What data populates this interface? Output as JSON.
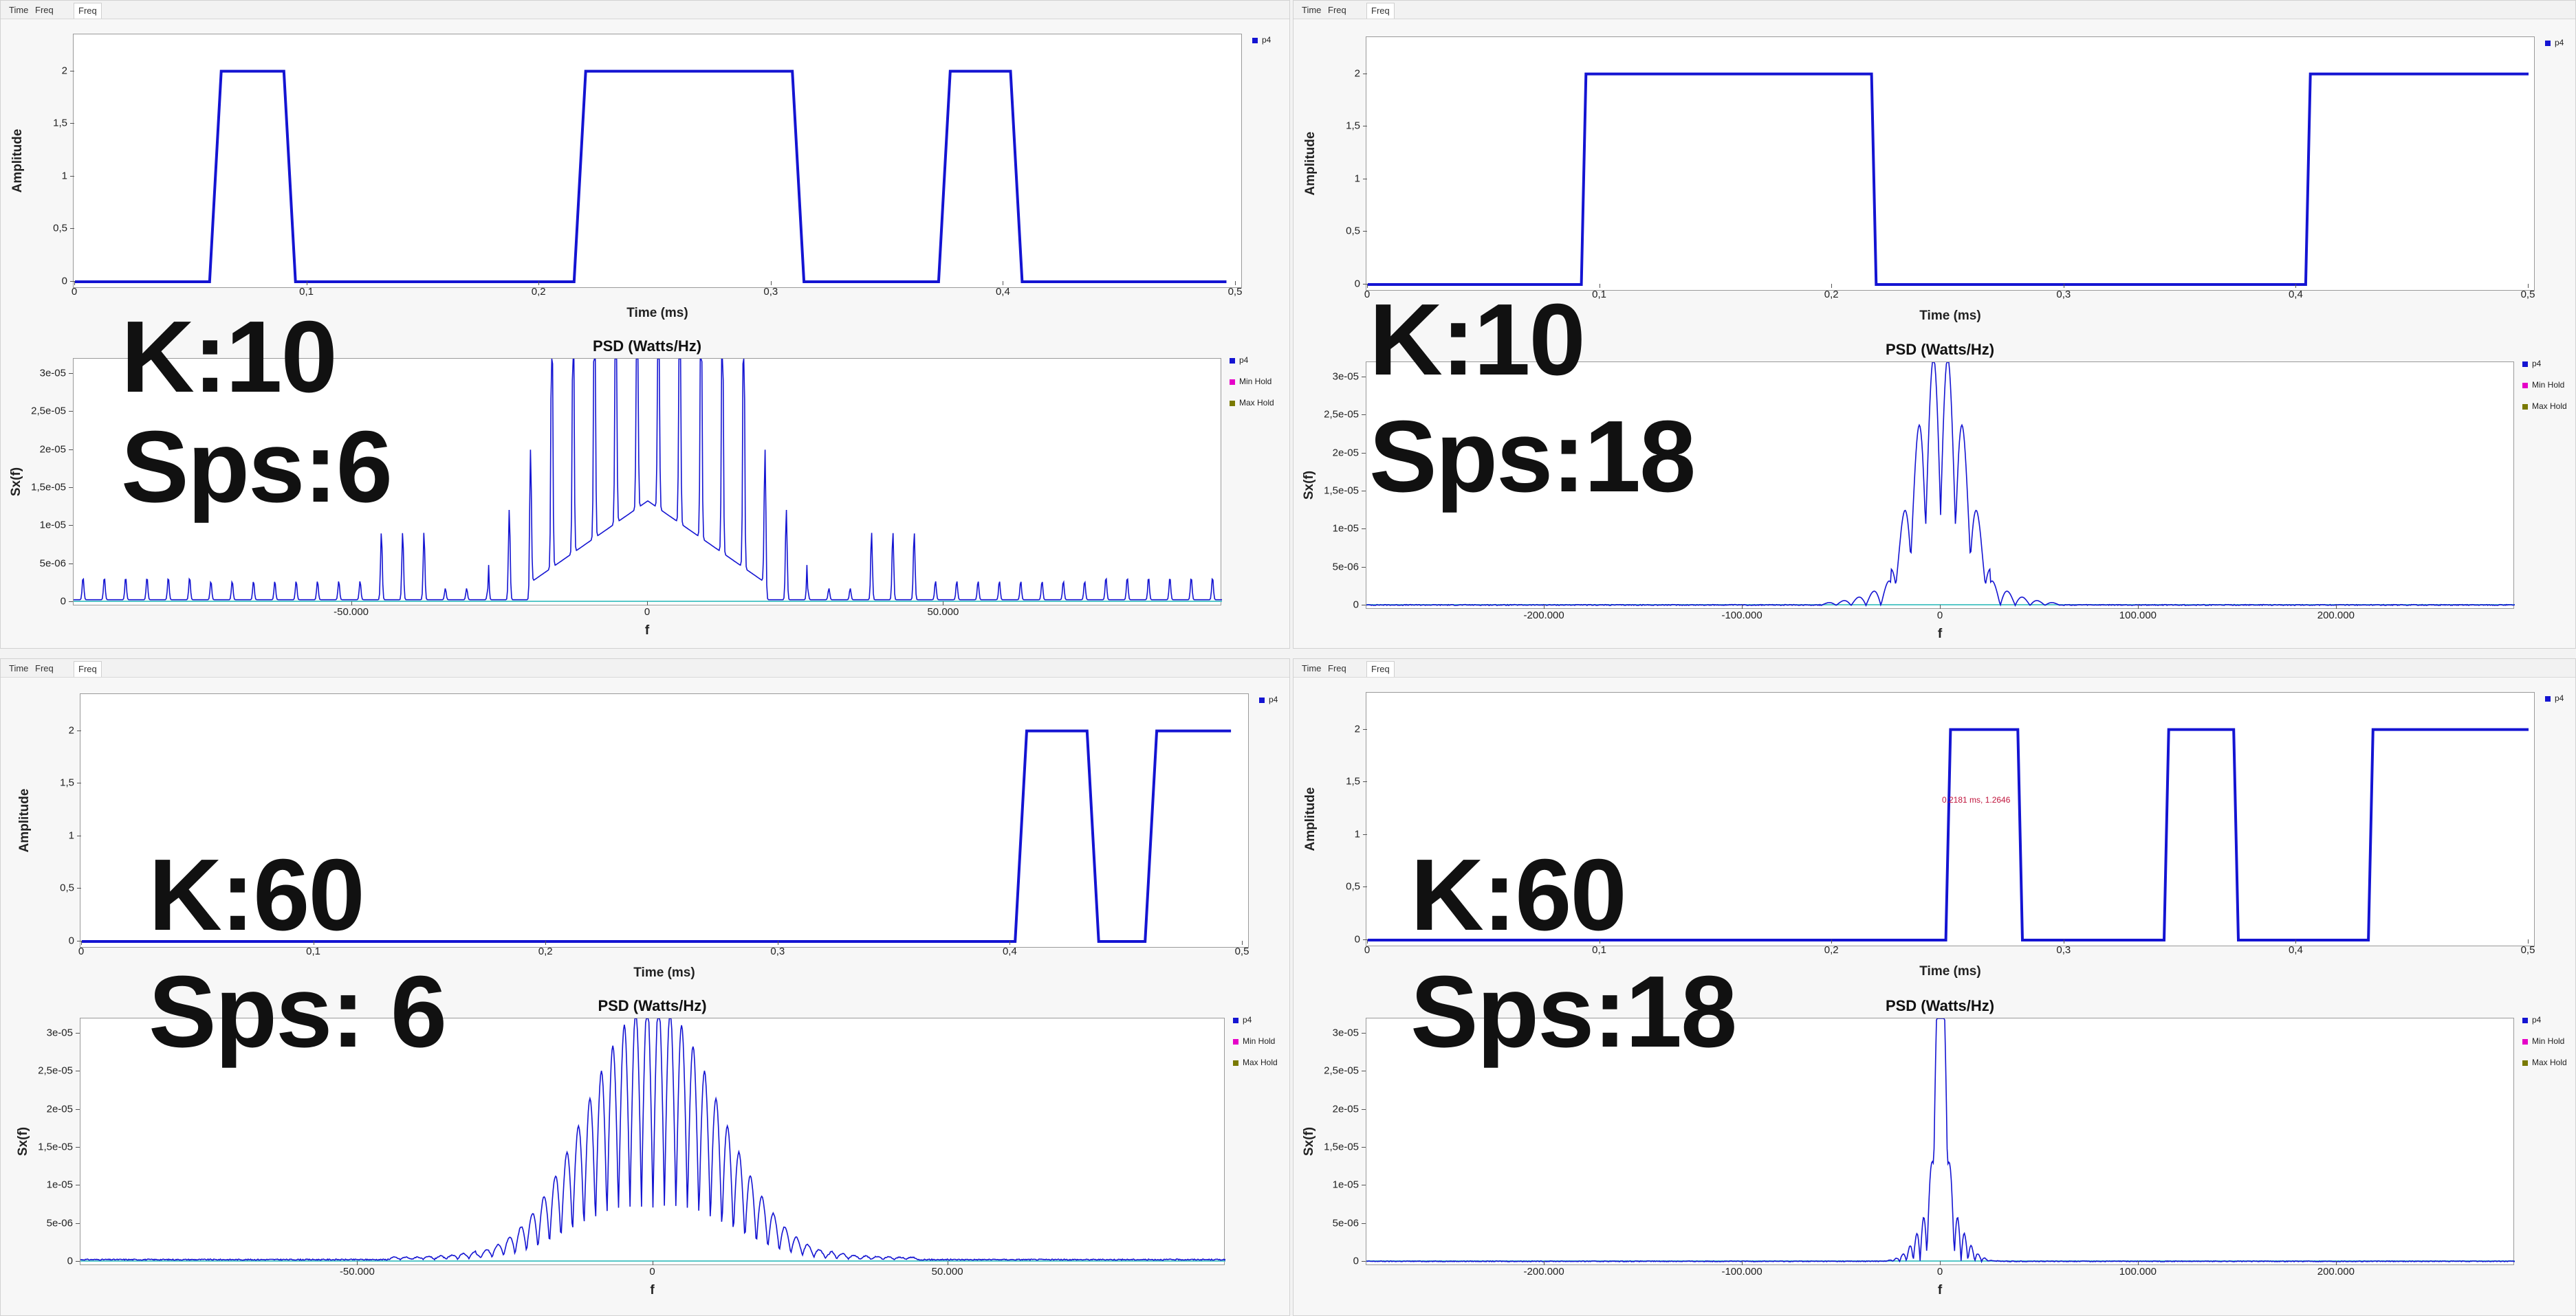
{
  "colors": {
    "trace": "#1414d2",
    "min_hold": "#e600c8",
    "max_hold": "#7a7a00",
    "baseline": "#58c8c8"
  },
  "panels": [
    {
      "tabs": [
        "Time",
        "Freq",
        "Freq"
      ],
      "time_plot": {
        "ylabel": "Amplitude",
        "xlabel": "Time (ms)",
        "xticks": [
          "0",
          "0,1",
          "0,2",
          "0,3",
          "0,4",
          "0,5"
        ],
        "yticks": [
          "0",
          "0,5",
          "1",
          "1,5",
          "2"
        ],
        "legend": "p4"
      },
      "psd_plot": {
        "title": "PSD (Watts/Hz)",
        "ylabel": "Sx(f)",
        "xlabel": "f",
        "xticks": [
          "-50.000",
          "0",
          "50.000"
        ],
        "yticks": [
          "0",
          "5e-06",
          "1e-05",
          "1,5e-05",
          "2e-05",
          "2,5e-05",
          "3e-05"
        ],
        "legend": [
          "p4",
          "Min Hold",
          "Max Hold"
        ]
      },
      "overlay": {
        "k": "K:10",
        "sps": "Sps:6"
      }
    },
    {
      "tabs": [
        "Time",
        "Freq",
        "Freq"
      ],
      "time_plot": {
        "ylabel": "Amplitude",
        "xlabel": "Time (ms)",
        "xticks": [
          "0",
          "0,1",
          "0,2",
          "0,3",
          "0,4",
          "0,5"
        ],
        "yticks": [
          "0",
          "0,5",
          "1",
          "1,5",
          "2"
        ],
        "legend": "p4"
      },
      "psd_plot": {
        "title": "PSD (Watts/Hz)",
        "ylabel": "Sx(f)",
        "xlabel": "f",
        "xticks": [
          "-200.000",
          "-100.000",
          "0",
          "100.000",
          "200.000"
        ],
        "yticks": [
          "0",
          "5e-06",
          "1e-05",
          "1,5e-05",
          "2e-05",
          "2,5e-05",
          "3e-05"
        ],
        "legend": [
          "p4",
          "Min Hold",
          "Max Hold"
        ]
      },
      "overlay": {
        "k": "K:10",
        "sps": "Sps:18"
      }
    },
    {
      "tabs": [
        "Time",
        "Freq",
        "Freq"
      ],
      "time_plot": {
        "ylabel": "Amplitude",
        "xlabel": "Time (ms)",
        "xticks": [
          "0",
          "0,1",
          "0,2",
          "0,3",
          "0,4",
          "0,5"
        ],
        "yticks": [
          "0",
          "0,5",
          "1",
          "1,5",
          "2"
        ],
        "legend": "p4"
      },
      "psd_plot": {
        "title": "PSD (Watts/Hz)",
        "ylabel": "Sx(f)",
        "xlabel": "f",
        "xticks": [
          "-50.000",
          "0",
          "50.000"
        ],
        "yticks": [
          "0",
          "5e-06",
          "1e-05",
          "1,5e-05",
          "2e-05",
          "2,5e-05",
          "3e-05"
        ],
        "legend": [
          "p4",
          "Min Hold",
          "Max Hold"
        ]
      },
      "overlay": {
        "k": "K:60",
        "sps": "Sps: 6"
      }
    },
    {
      "tabs": [
        "Time",
        "Freq",
        "Freq"
      ],
      "time_plot": {
        "ylabel": "Amplitude",
        "xlabel": "Time (ms)",
        "xticks": [
          "0",
          "0,1",
          "0,2",
          "0,3",
          "0,4",
          "0,5"
        ],
        "yticks": [
          "0",
          "0,5",
          "1",
          "1,5",
          "2"
        ],
        "legend": "p4",
        "marker_readout": "0.2181 ms, 1.2646"
      },
      "psd_plot": {
        "title": "PSD (Watts/Hz)",
        "ylabel": "Sx(f)",
        "xlabel": "f",
        "xticks": [
          "-200.000",
          "-100.000",
          "0",
          "100.000",
          "200.000"
        ],
        "yticks": [
          "0",
          "5e-06",
          "1e-05",
          "1,5e-05",
          "2e-05",
          "2,5e-05",
          "3e-05"
        ],
        "legend": [
          "p4",
          "Min Hold",
          "Max Hold"
        ]
      },
      "overlay": {
        "k": "K:60",
        "sps": "Sps:18"
      }
    }
  ],
  "chart_data": [
    {
      "type": "line",
      "ylabel": "Amplitude",
      "xlabel": "Time (ms)",
      "xlim": [
        0,
        0.5
      ],
      "ylim": [
        0,
        2.35
      ],
      "series": [
        {
          "name": "p4",
          "x": [
            0,
            0.058,
            0.063,
            0.09,
            0.095,
            0.215,
            0.22,
            0.309,
            0.314,
            0.372,
            0.377,
            0.403,
            0.408,
            0.496
          ],
          "y": [
            0,
            0,
            2,
            2,
            0,
            0,
            2,
            2,
            0,
            0,
            2,
            2,
            0,
            0
          ]
        }
      ]
    },
    {
      "type": "line",
      "ylabel": "Sx(f)",
      "xlabel": "f",
      "xlim": [
        -97000,
        97000
      ],
      "ylim": [
        0,
        3.2e-05
      ],
      "series": [
        {
          "name": "p4",
          "profile": "line spectrum, 3.6 kHz spacing, peaks clipped above 3e-05 within ±16 kHz, sidelobe groups near ±40 kHz and ±82 kHz"
        }
      ]
    },
    {
      "type": "line",
      "ylabel": "Amplitude",
      "xlabel": "Time (ms)",
      "xlim": [
        0,
        0.5
      ],
      "ylim": [
        0,
        2.35
      ],
      "series": [
        {
          "name": "p4",
          "x": [
            0,
            0.092,
            0.094,
            0.217,
            0.219,
            0.404,
            0.406,
            0.5
          ],
          "y": [
            0,
            0,
            2,
            2,
            0,
            0,
            2,
            2
          ]
        }
      ]
    },
    {
      "type": "line",
      "ylabel": "Sx(f)",
      "xlabel": "f",
      "xlim": [
        -290000,
        290000
      ],
      "ylim": [
        0,
        3.2e-05
      ],
      "series": [
        {
          "name": "p4",
          "profile": "narrow main lobe within ±25 kHz reaching 3e-05, small sidelobes near ±45 kHz"
        }
      ]
    },
    {
      "type": "line",
      "ylabel": "Amplitude",
      "xlabel": "Time (ms)",
      "xlim": [
        0,
        0.5
      ],
      "ylim": [
        0,
        2.35
      ],
      "series": [
        {
          "name": "p4",
          "x": [
            0,
            0.402,
            0.407,
            0.433,
            0.438,
            0.458,
            0.463,
            0.495
          ],
          "y": [
            0,
            0,
            2,
            2,
            0,
            0,
            2,
            2
          ]
        }
      ]
    },
    {
      "type": "line",
      "ylabel": "Sx(f)",
      "xlabel": "f",
      "xlim": [
        -97000,
        97000
      ],
      "ylim": [
        0,
        3.2e-05
      ],
      "series": [
        {
          "name": "p4",
          "profile": "dense comb under a broad lobe spanning ±30 kHz, peaks reaching 3e-05 near 0"
        }
      ]
    },
    {
      "type": "line",
      "ylabel": "Amplitude",
      "xlabel": "Time (ms)",
      "xlim": [
        0,
        0.5
      ],
      "ylim": [
        0,
        2.35
      ],
      "series": [
        {
          "name": "p4",
          "x": [
            0,
            0.249,
            0.251,
            0.28,
            0.282,
            0.343,
            0.345,
            0.373,
            0.375,
            0.431,
            0.433,
            0.5
          ],
          "y": [
            0,
            0,
            2,
            2,
            0,
            0,
            2,
            2,
            0,
            0,
            2,
            2
          ]
        }
      ]
    },
    {
      "type": "line",
      "ylabel": "Sx(f)",
      "xlabel": "f",
      "xlim": [
        -290000,
        290000
      ],
      "ylim": [
        0,
        3.2e-05
      ],
      "series": [
        {
          "name": "p4",
          "profile": "very narrow spike at 0 reaching 3e-05, lobes within ±20 kHz"
        }
      ]
    }
  ]
}
